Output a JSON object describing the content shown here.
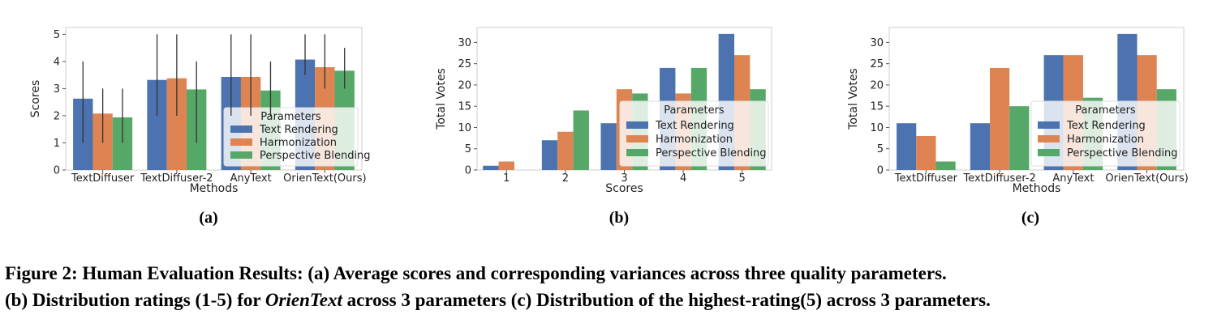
{
  "colors": {
    "series": [
      "#4c72b0",
      "#dd8452",
      "#55a868"
    ],
    "errorbar": "#333333"
  },
  "chart_data": [
    {
      "id": "a",
      "type": "bar",
      "title": "",
      "xlabel": "Methods",
      "ylabel": "Scores",
      "ylim": [
        0,
        5.25
      ],
      "yticks": [
        0,
        1,
        2,
        3,
        4,
        5
      ],
      "grid": false,
      "legend": {
        "title": "Parameters",
        "placement": "lower-right"
      },
      "categories": [
        "TextDiffuser",
        "TextDiffuser-2",
        "AnyText",
        "OrienText(Ours)"
      ],
      "series": [
        {
          "name": "Text Rendering",
          "values": [
            2.63,
            3.32,
            3.43,
            4.07
          ],
          "err_low": [
            1,
            2,
            2,
            3.5
          ],
          "err_high": [
            4,
            5,
            5,
            5
          ]
        },
        {
          "name": "Harmonization",
          "values": [
            2.08,
            3.38,
            3.43,
            3.79
          ],
          "err_low": [
            1,
            2,
            2,
            3
          ],
          "err_high": [
            3,
            5,
            5,
            5
          ]
        },
        {
          "name": "Perspective Blending",
          "values": [
            1.94,
            2.97,
            2.93,
            3.66
          ],
          "err_low": [
            1,
            1,
            2,
            3
          ],
          "err_high": [
            3,
            4,
            4,
            4.5
          ]
        }
      ]
    },
    {
      "id": "b",
      "type": "bar",
      "title": "",
      "xlabel": "Scores",
      "ylabel": "Total Votes",
      "ylim": [
        0,
        33.5
      ],
      "yticks": [
        0,
        5,
        10,
        15,
        20,
        25,
        30
      ],
      "grid": false,
      "legend": {
        "title": "Parameters",
        "placement": "lower-right"
      },
      "categories": [
        "1",
        "2",
        "3",
        "4",
        "5"
      ],
      "series": [
        {
          "name": "Text Rendering",
          "values": [
            1,
            7,
            11,
            24,
            32
          ]
        },
        {
          "name": "Harmonization",
          "values": [
            2,
            9,
            19,
            18,
            27
          ]
        },
        {
          "name": "Perspective Blending",
          "values": [
            0,
            14,
            18,
            24,
            19
          ]
        }
      ]
    },
    {
      "id": "c",
      "type": "bar",
      "title": "",
      "xlabel": "Methods",
      "ylabel": "Total Votes",
      "ylim": [
        0,
        33.5
      ],
      "yticks": [
        0,
        5,
        10,
        15,
        20,
        25,
        30
      ],
      "grid": false,
      "legend": {
        "title": "Parameters",
        "placement": "lower-right"
      },
      "categories": [
        "TextDiffuser",
        "TextDiffuser-2",
        "AnyText",
        "OrienText(Ours)"
      ],
      "series": [
        {
          "name": "Text Rendering",
          "values": [
            11,
            11,
            27,
            32
          ]
        },
        {
          "name": "Harmonization",
          "values": [
            8,
            24,
            27,
            27
          ]
        },
        {
          "name": "Perspective Blending",
          "values": [
            2,
            15,
            17,
            19
          ]
        }
      ]
    }
  ],
  "subfigure_labels": [
    "(a)",
    "(b)",
    "(c)"
  ],
  "caption": {
    "line1": "Figure 2: Human Evaluation Results: (a) Average scores and corresponding variances across three quality parameters.",
    "line2_part1": "(b) Distribution ratings (1-5) for ",
    "line2_italic": "OrienText",
    "line2_part2": " across 3 parameters (c) Distribution of the highest-rating(5) across 3 parameters."
  }
}
